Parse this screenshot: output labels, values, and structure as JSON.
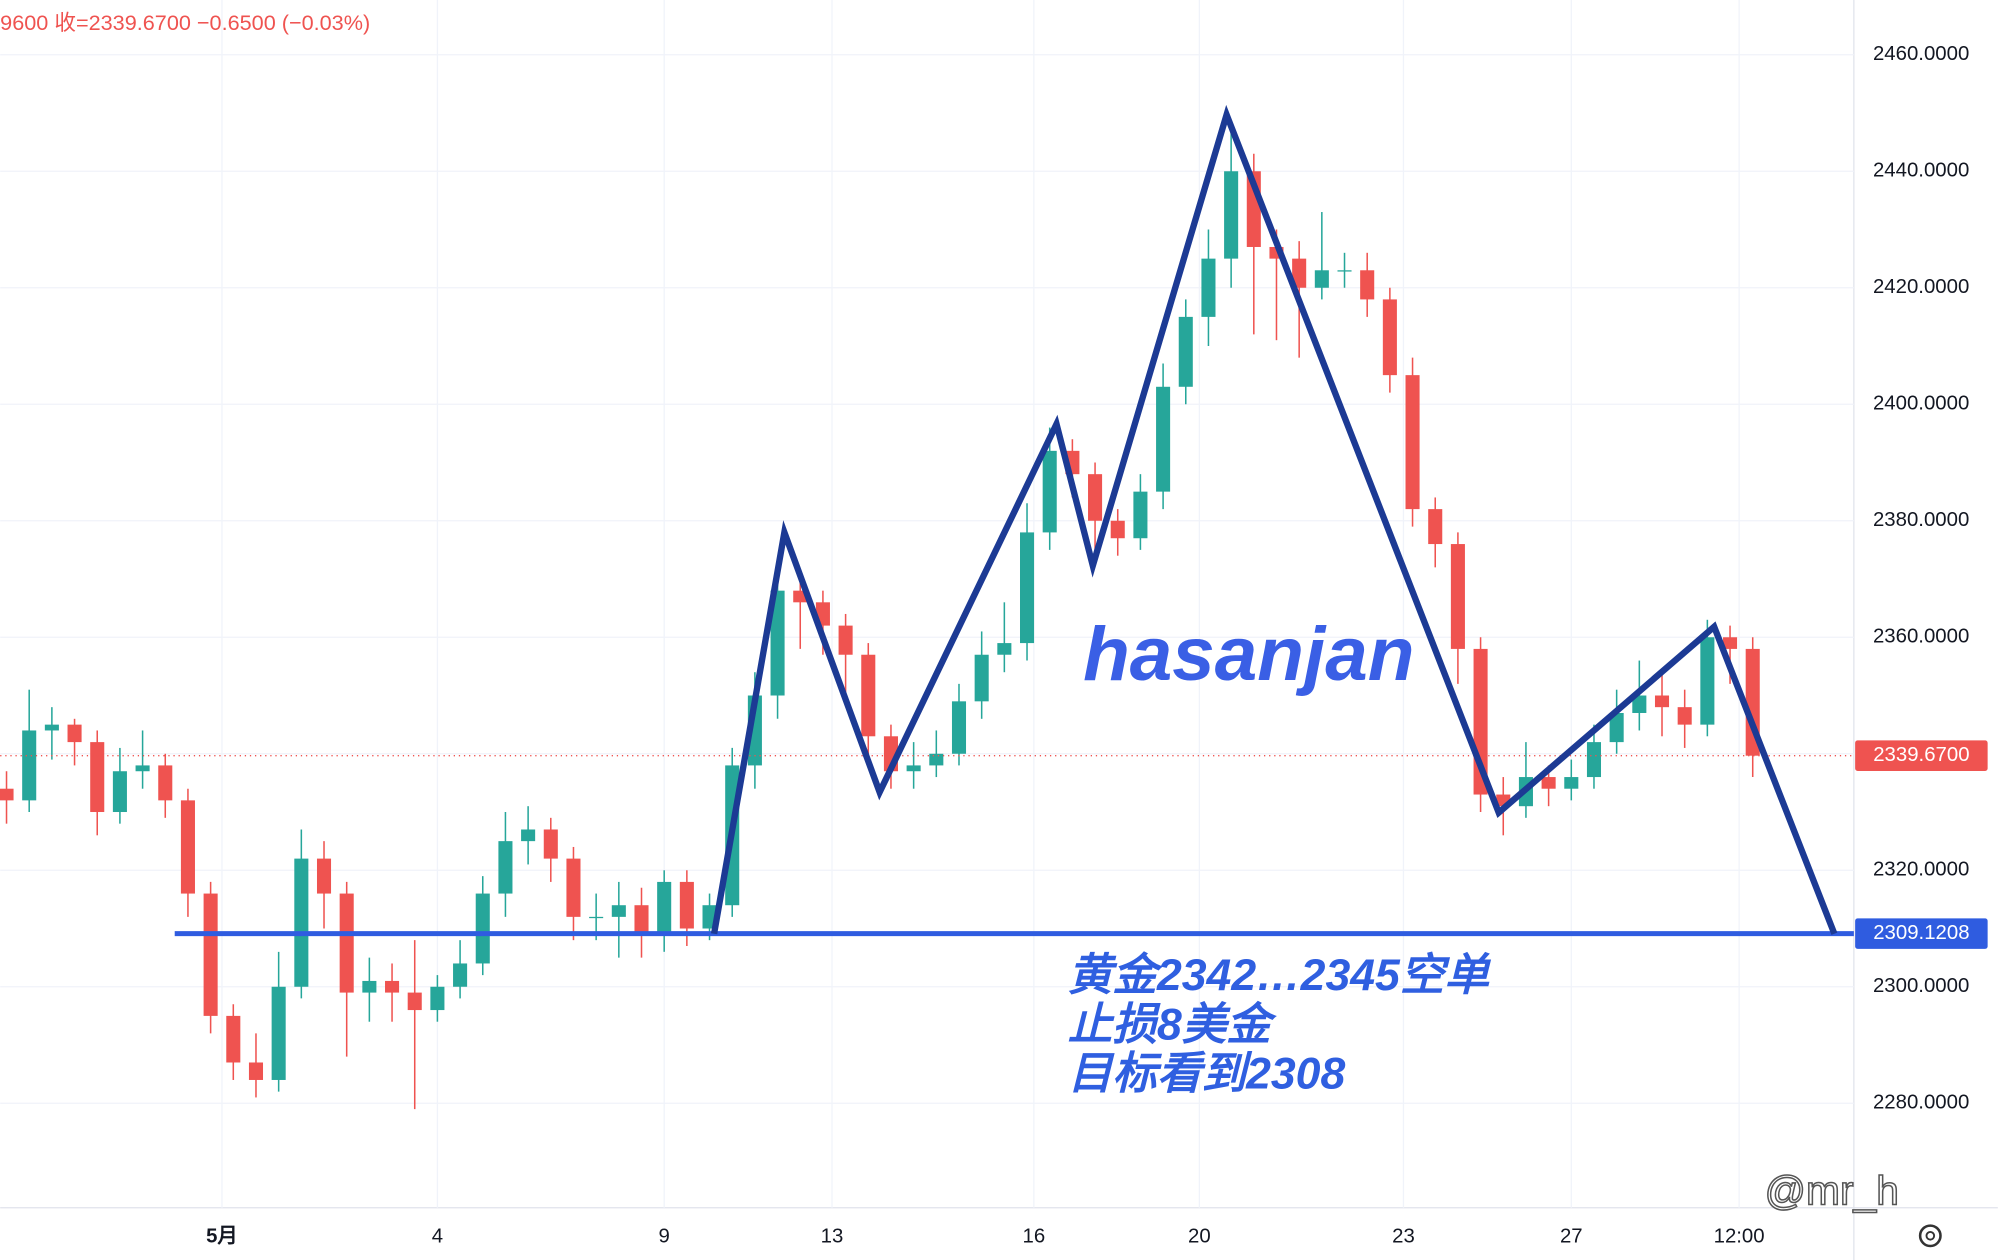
{
  "header": "9600  收=2339.6700  −0.6500 (−0.03%)",
  "chart_data": {
    "type": "candlestick",
    "title": "hasanjan",
    "annotations": [
      "黄金2342…2345空单",
      "止损8美金",
      "目标看到2308"
    ],
    "watermark": "@mr_h",
    "xlim": [
      -0.28,
      81.46
    ],
    "ylim": [
      2262.06,
      2469.4
    ],
    "xticks": [
      {
        "value": 9.5,
        "label": "5月"
      },
      {
        "value": 19,
        "label": "4"
      },
      {
        "value": 29,
        "label": "9"
      },
      {
        "value": 36.4,
        "label": "13"
      },
      {
        "value": 45.3,
        "label": "16"
      },
      {
        "value": 52.6,
        "label": "20"
      },
      {
        "value": 61.6,
        "label": "23"
      },
      {
        "value": 69,
        "label": "27"
      },
      {
        "value": 76.4,
        "label": "12:00"
      }
    ],
    "yticks": [
      {
        "value": 2280,
        "label": "2280.0000"
      },
      {
        "value": 2300,
        "label": "2300.0000"
      },
      {
        "value": 2320,
        "label": "2320.0000"
      },
      {
        "value": 2340,
        "label": "2340.0000"
      },
      {
        "value": 2360,
        "label": "2360.0000"
      },
      {
        "value": 2380,
        "label": "2380.0000"
      },
      {
        "value": 2400,
        "label": "2400.0000"
      },
      {
        "value": 2420,
        "label": "2420.0000"
      },
      {
        "value": 2440,
        "label": "2440.0000"
      },
      {
        "value": 2460,
        "label": "2460.0000"
      }
    ],
    "grid": true,
    "up_color": "#26a69a",
    "down_color": "#ef5350",
    "open": [
      2334,
      2332,
      2344,
      2345,
      2342,
      2330,
      2337,
      2338,
      2332,
      2316,
      2295,
      2287,
      2284,
      2300,
      2322,
      2316,
      2299,
      2301,
      2299,
      2296,
      2300,
      2304,
      2316,
      2325,
      2327,
      2322,
      2312,
      2312,
      2314,
      2309,
      2318,
      2310,
      2314,
      2338,
      2350,
      2368,
      2366,
      2362,
      2357,
      2343,
      2337,
      2338,
      2340,
      2349,
      2357,
      2359,
      2378,
      2392,
      2388,
      2380,
      2377,
      2385,
      2403,
      2415,
      2425,
      2440,
      2427,
      2425,
      2420,
      2423,
      2423,
      2418,
      2405,
      2382,
      2376,
      2358,
      2333,
      2331,
      2336,
      2334,
      2336,
      2342,
      2347,
      2350,
      2348,
      2345,
      2360,
      2358
    ],
    "high": [
      2337,
      2351,
      2348,
      2346,
      2344,
      2341,
      2344,
      2340,
      2334,
      2318,
      2297,
      2292,
      2306,
      2327,
      2325,
      2318,
      2305,
      2304,
      2308,
      2302,
      2308,
      2319,
      2330,
      2331,
      2329,
      2324,
      2316,
      2318,
      2317,
      2320,
      2320,
      2316,
      2341,
      2354,
      2372,
      2371,
      2368,
      2364,
      2359,
      2345,
      2342,
      2344,
      2352,
      2361,
      2366,
      2383,
      2396,
      2394,
      2390,
      2382,
      2388,
      2407,
      2418,
      2430,
      2447,
      2443,
      2430,
      2428,
      2433,
      2426,
      2426,
      2420,
      2408,
      2384,
      2378,
      2360,
      2336,
      2342,
      2338,
      2339,
      2345,
      2351,
      2356,
      2354,
      2351,
      2363,
      2362,
      2360
    ],
    "low": [
      2328,
      2330,
      2339,
      2338,
      2326,
      2328,
      2334,
      2329,
      2312,
      2292,
      2284,
      2281,
      2282,
      2298,
      2310,
      2288,
      2294,
      2294,
      2279,
      2294,
      2298,
      2302,
      2312,
      2321,
      2318,
      2308,
      2308,
      2305,
      2305,
      2306,
      2307,
      2308,
      2312,
      2334,
      2346,
      2358,
      2357,
      2350,
      2339,
      2334,
      2334,
      2336,
      2338,
      2346,
      2354,
      2356,
      2375,
      2384,
      2374,
      2374,
      2375,
      2382,
      2400,
      2410,
      2420,
      2412,
      2411,
      2408,
      2418,
      2420,
      2415,
      2402,
      2379,
      2372,
      2352,
      2330,
      2326,
      2329,
      2331,
      2332,
      2334,
      2340,
      2344,
      2343,
      2341,
      2343,
      2352,
      2336
    ],
    "close": [
      2332,
      2344,
      2345,
      2342,
      2330,
      2337,
      2338,
      2332,
      2316,
      2295,
      2287,
      2284,
      2300,
      2322,
      2316,
      2299,
      2301,
      2299,
      2296,
      2300,
      2304,
      2316,
      2325,
      2327,
      2322,
      2312,
      2312,
      2314,
      2309,
      2318,
      2310,
      2314,
      2338,
      2350,
      2368,
      2366,
      2362,
      2357,
      2343,
      2337,
      2338,
      2340,
      2349,
      2357,
      2359,
      2378,
      2392,
      2388,
      2380,
      2377,
      2385,
      2403,
      2415,
      2425,
      2440,
      2427,
      2425,
      2420,
      2423,
      2423,
      2418,
      2405,
      2382,
      2376,
      2358,
      2333,
      2331,
      2336,
      2334,
      2336,
      2342,
      2347,
      2350,
      2348,
      2345,
      2360,
      2358,
      2339.67
    ],
    "last_price": {
      "value": 2339.67,
      "label": "2339.6700"
    },
    "support_level": 2309.1208,
    "support_color": "#2f5ce0",
    "zigzag": {
      "x": [
        31.2,
        34.3,
        38.5,
        46.3,
        47.9,
        53.8,
        65.8,
        75.3,
        80.6
      ],
      "values": [
        2309.1,
        2378,
        2333.4,
        2396.6,
        2372.3,
        2449.7,
        2329.9,
        2361.8,
        2309.1
      ],
      "color": "#1c3a94"
    }
  }
}
